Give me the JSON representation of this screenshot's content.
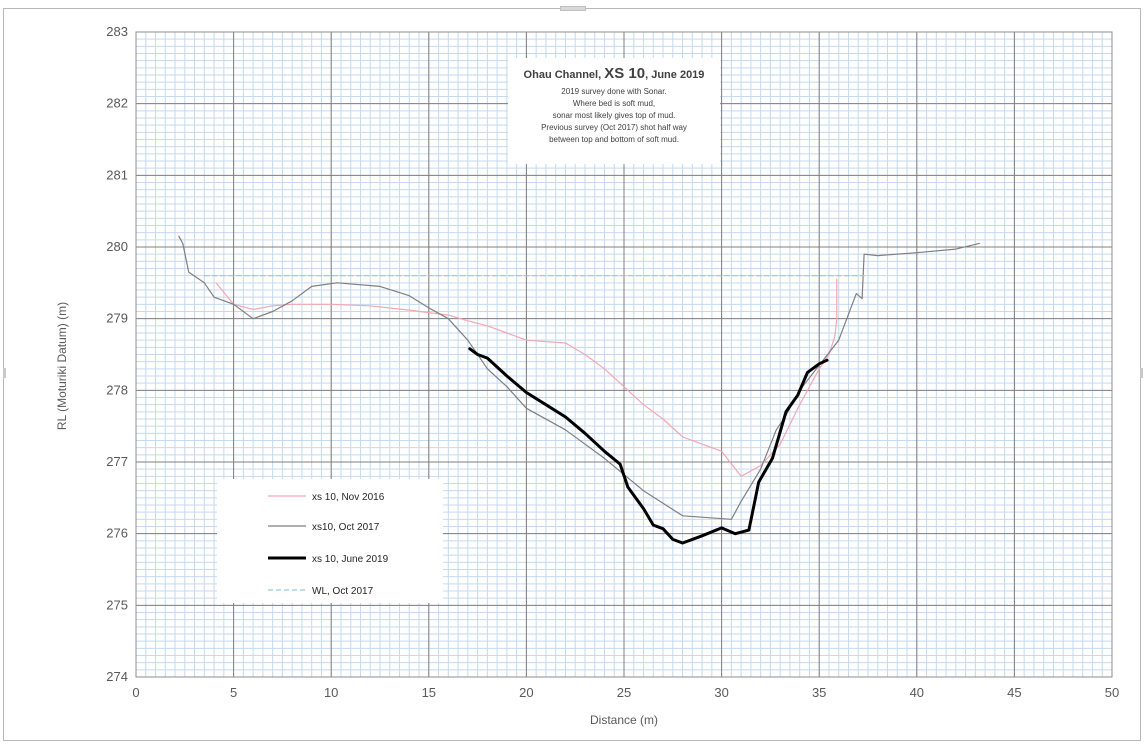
{
  "chart_data": {
    "type": "line",
    "title": "",
    "xlabel": "Distance (m)",
    "ylabel": "RL (Moturiki Datum) (m)",
    "xlim": [
      0,
      50
    ],
    "ylim": [
      274,
      283
    ],
    "x_major_ticks": [
      "0",
      "5",
      "10",
      "15",
      "20",
      "25",
      "30",
      "35",
      "40",
      "45",
      "50"
    ],
    "y_major_ticks": [
      "274",
      "275",
      "276",
      "277",
      "278",
      "279",
      "280",
      "281",
      "282",
      "283"
    ],
    "grid": "major and minor",
    "legend_position": "lower-left",
    "annotation": {
      "title_parts": [
        "Ohau Channel, ",
        "XS 10",
        ", June 2019"
      ],
      "lines": [
        "2019 survey done with Sonar.",
        "Where bed is soft mud,",
        "sonar most likely gives top of mud.",
        "Previous survey (Oct 2017) shot half way",
        "between top and bottom of soft mud."
      ]
    },
    "series": [
      {
        "name": "xs 10, Nov 2016",
        "color": "#f4a7b0",
        "style": "solid",
        "points": [
          [
            4.1,
            279.5
          ],
          [
            5,
            279.2
          ],
          [
            6,
            279.13
          ],
          [
            7,
            279.18
          ],
          [
            8,
            279.2
          ],
          [
            10,
            279.2
          ],
          [
            12,
            279.18
          ],
          [
            14,
            279.12
          ],
          [
            16,
            279.05
          ],
          [
            17,
            278.97
          ],
          [
            18,
            278.9
          ],
          [
            19,
            278.8
          ],
          [
            20,
            278.7
          ],
          [
            22,
            278.66
          ],
          [
            23,
            278.5
          ],
          [
            24,
            278.3
          ],
          [
            25,
            278.05
          ],
          [
            26,
            277.8
          ],
          [
            27,
            277.6
          ],
          [
            28,
            277.35
          ],
          [
            29,
            277.25
          ],
          [
            30,
            277.15
          ],
          [
            31,
            276.8
          ],
          [
            32,
            276.95
          ],
          [
            33,
            277.25
          ],
          [
            34,
            277.8
          ],
          [
            35,
            278.3
          ],
          [
            35.5,
            278.5
          ],
          [
            35.8,
            278.75
          ],
          [
            35.9,
            279.0
          ],
          [
            35.9,
            279.55
          ]
        ]
      },
      {
        "name": "xs10, Oct 2017",
        "color": "#7f7f7f",
        "style": "solid",
        "points": [
          [
            2.2,
            280.15
          ],
          [
            2.4,
            280.05
          ],
          [
            2.7,
            279.65
          ],
          [
            3.5,
            279.5
          ],
          [
            4,
            279.3
          ],
          [
            5,
            279.2
          ],
          [
            6,
            279.0
          ],
          [
            7,
            279.1
          ],
          [
            8,
            279.25
          ],
          [
            9,
            279.45
          ],
          [
            10.3,
            279.5
          ],
          [
            12.5,
            279.45
          ],
          [
            14,
            279.32
          ],
          [
            15,
            279.15
          ],
          [
            16,
            279.0
          ],
          [
            17,
            278.7
          ],
          [
            18,
            278.3
          ],
          [
            19,
            278.05
          ],
          [
            20,
            277.75
          ],
          [
            22,
            277.45
          ],
          [
            24,
            277.05
          ],
          [
            26,
            276.6
          ],
          [
            28,
            276.25
          ],
          [
            30.5,
            276.2
          ],
          [
            31,
            276.45
          ],
          [
            32,
            276.9
          ],
          [
            32.8,
            277.45
          ],
          [
            33.3,
            277.65
          ],
          [
            34,
            278.0
          ],
          [
            35,
            278.35
          ],
          [
            36,
            278.7
          ],
          [
            36.9,
            279.35
          ],
          [
            37.2,
            279.28
          ],
          [
            37.3,
            279.9
          ],
          [
            38,
            279.88
          ],
          [
            40,
            279.92
          ],
          [
            42,
            279.97
          ],
          [
            43.2,
            280.05
          ]
        ]
      },
      {
        "name": "xs 10, June 2019",
        "color": "#000000",
        "style": "solid",
        "points": [
          [
            17.1,
            278.58
          ],
          [
            17.5,
            278.5
          ],
          [
            18,
            278.45
          ],
          [
            19,
            278.2
          ],
          [
            20,
            277.97
          ],
          [
            21,
            277.8
          ],
          [
            22,
            277.63
          ],
          [
            23,
            277.4
          ],
          [
            24,
            277.15
          ],
          [
            24.8,
            276.97
          ],
          [
            25.2,
            276.65
          ],
          [
            26,
            276.35
          ],
          [
            26.5,
            276.12
          ],
          [
            27,
            276.07
          ],
          [
            27.5,
            275.92
          ],
          [
            28,
            275.87
          ],
          [
            29,
            275.97
          ],
          [
            30,
            276.08
          ],
          [
            30.7,
            276.0
          ],
          [
            31.4,
            276.05
          ],
          [
            31.9,
            276.72
          ],
          [
            32.6,
            277.05
          ],
          [
            33.3,
            277.7
          ],
          [
            33.9,
            277.93
          ],
          [
            34.4,
            278.25
          ],
          [
            35,
            278.37
          ],
          [
            35.4,
            278.42
          ]
        ]
      },
      {
        "name": "WL, Oct 2017",
        "color": "#9dc3e6",
        "style": "dashed",
        "points": [
          [
            3.5,
            279.6
          ],
          [
            37.3,
            279.6
          ]
        ]
      }
    ]
  }
}
